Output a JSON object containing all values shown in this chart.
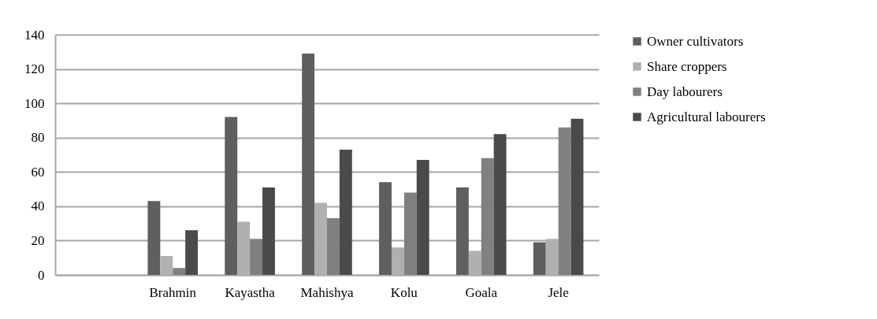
{
  "chart_data": {
    "type": "bar",
    "categories": [
      null,
      "Brahmin",
      "Kayastha",
      "Mahishya",
      "Kolu",
      "Goala",
      "Jele"
    ],
    "series": [
      {
        "name": "Owner cultivators",
        "color": "#5f5f5f",
        "values": [
          null,
          43,
          92,
          129,
          54,
          51,
          19
        ]
      },
      {
        "name": "Share croppers",
        "color": "#b0b0b0",
        "values": [
          null,
          11,
          31,
          42,
          16,
          14,
          21
        ]
      },
      {
        "name": "Day labourers",
        "color": "#808080",
        "values": [
          null,
          4,
          21,
          33,
          48,
          68,
          86
        ]
      },
      {
        "name": "Agricultural labourers",
        "color": "#4a4a4a",
        "values": [
          null,
          26,
          51,
          73,
          67,
          82,
          91
        ]
      }
    ],
    "ylim": [
      0,
      140
    ],
    "yticks": [
      0,
      20,
      40,
      60,
      80,
      100,
      120,
      140
    ],
    "grid": "y",
    "legend": "right"
  }
}
